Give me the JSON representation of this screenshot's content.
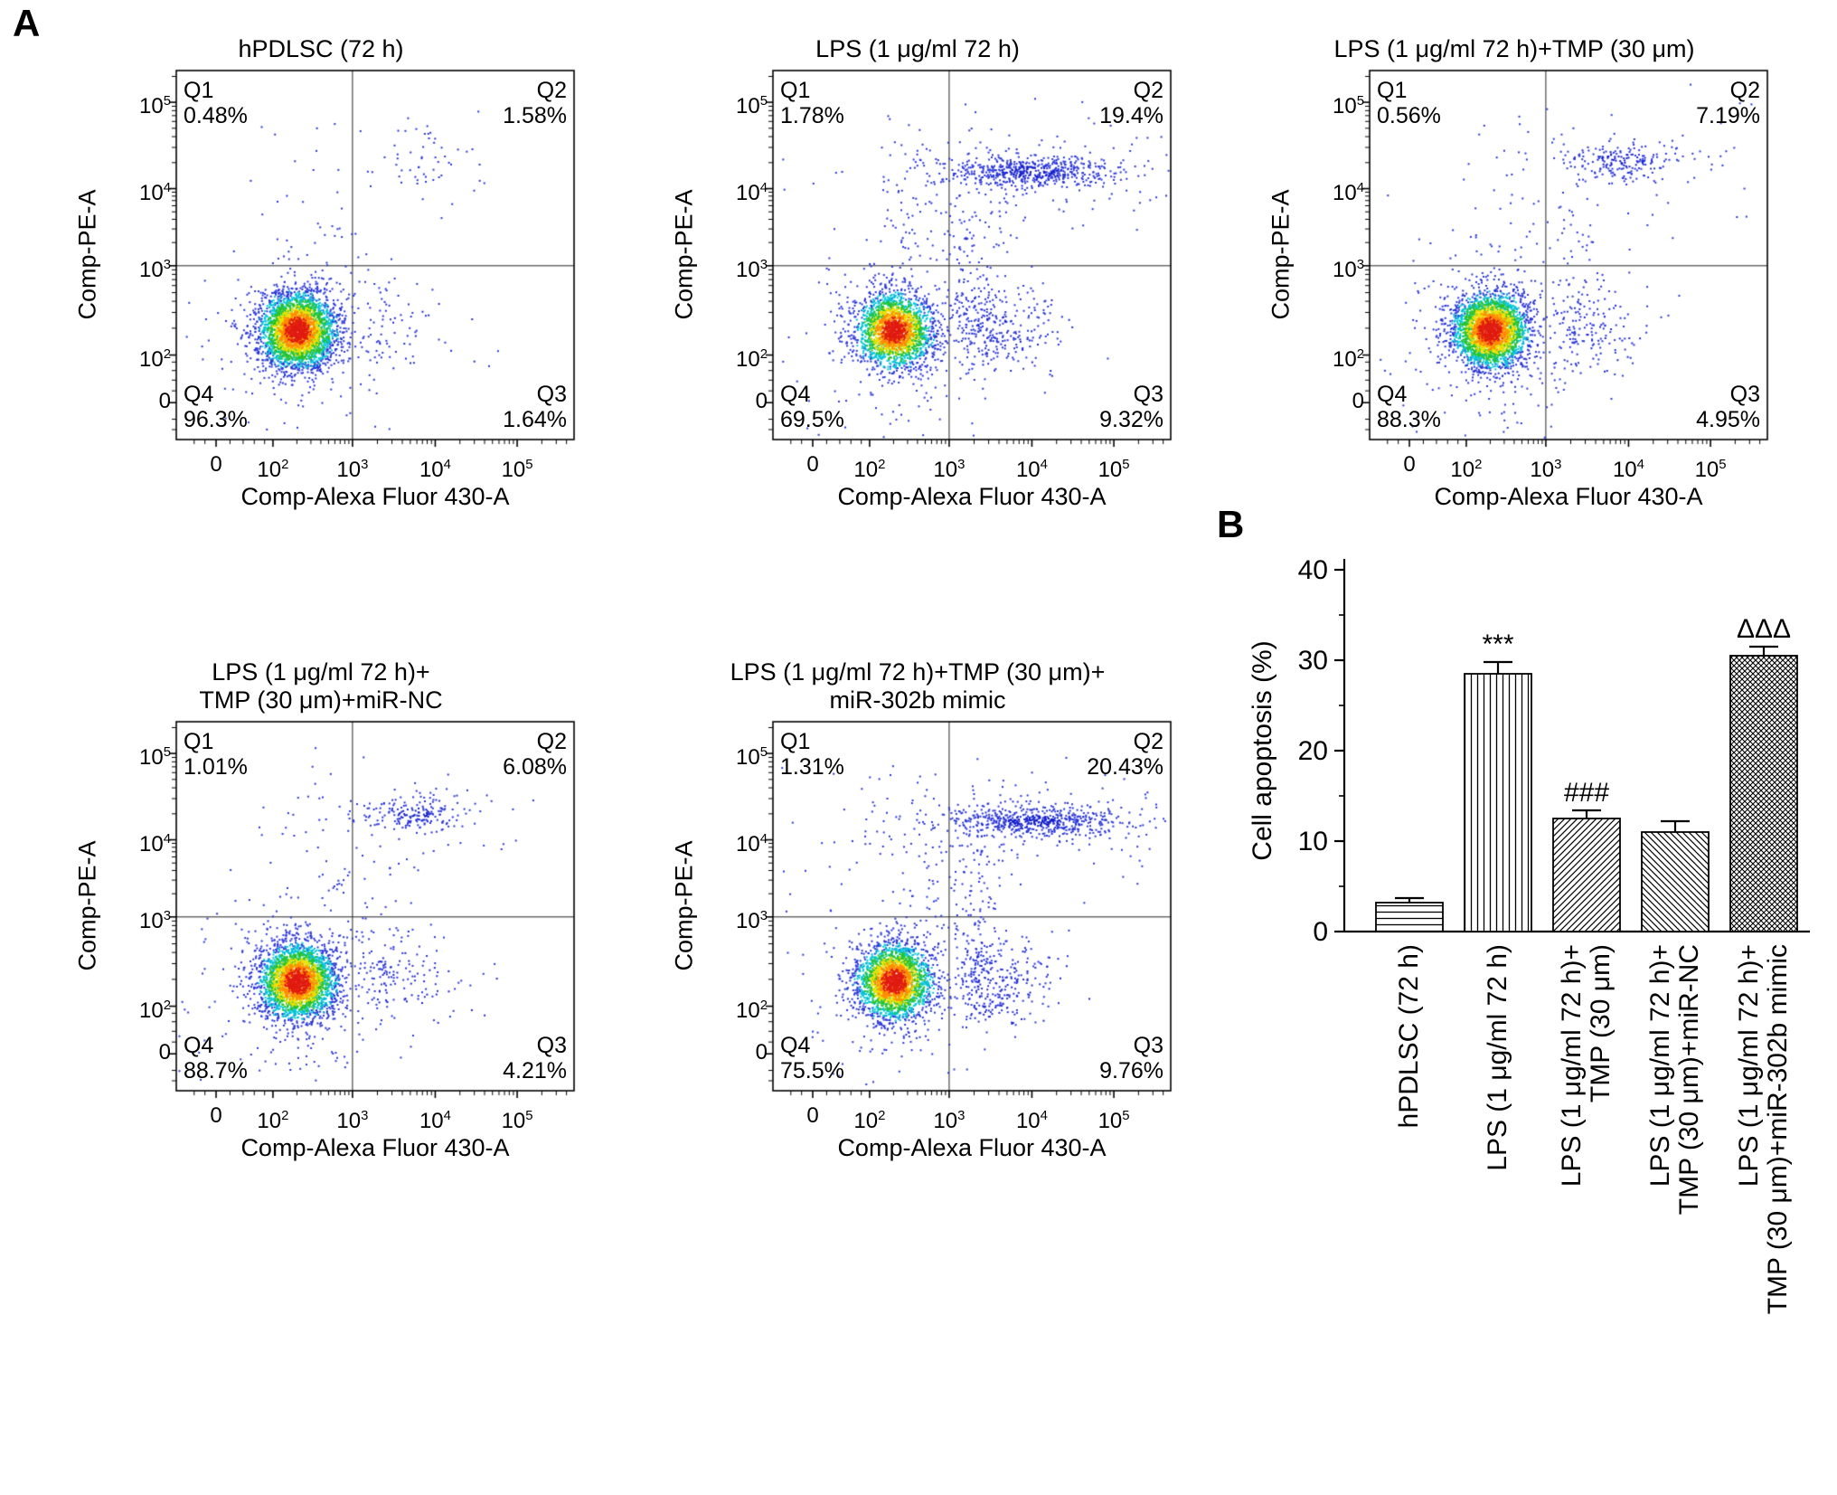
{
  "panel_labels": {
    "a": "A",
    "b": "B"
  },
  "flow_axis": {
    "x_label": "Comp-Alexa Fluor 430-A",
    "y_label": "Comp-PE-A",
    "x_ticks": [
      "0",
      "10^2",
      "10^3",
      "10^4",
      "10^5"
    ],
    "y_ticks": [
      "10^5",
      "10^4",
      "10^3",
      "10^2",
      "0"
    ]
  },
  "chart_data": [
    {
      "type": "scatter",
      "subtype": "flow-cytometry-density",
      "title_lines": [
        "hPDLSC (72 h)"
      ],
      "quadrants": [
        {
          "label": "Q1",
          "text": "0.48%",
          "value_pct": 0.48
        },
        {
          "label": "Q2",
          "text": "1.58%",
          "value_pct": 1.58
        },
        {
          "label": "Q3",
          "text": "1.64%",
          "value_pct": 1.64
        },
        {
          "label": "Q4",
          "text": "96.3%",
          "value_pct": 96.3
        }
      ]
    },
    {
      "type": "scatter",
      "subtype": "flow-cytometry-density",
      "title_lines": [
        "LPS (1 μg/ml 72 h)"
      ],
      "quadrants": [
        {
          "label": "Q1",
          "text": "1.78%",
          "value_pct": 1.78
        },
        {
          "label": "Q2",
          "text": "19.4%",
          "value_pct": 19.4
        },
        {
          "label": "Q3",
          "text": "9.32%",
          "value_pct": 9.32
        },
        {
          "label": "Q4",
          "text": "69.5%",
          "value_pct": 69.5
        }
      ]
    },
    {
      "type": "scatter",
      "subtype": "flow-cytometry-density",
      "title_lines": [
        "LPS (1 μg/ml 72 h)+TMP (30 μm)"
      ],
      "quadrants": [
        {
          "label": "Q1",
          "text": "0.56%",
          "value_pct": 0.56
        },
        {
          "label": "Q2",
          "text": "7.19%",
          "value_pct": 7.19
        },
        {
          "label": "Q3",
          "text": "4.95%",
          "value_pct": 4.95
        },
        {
          "label": "Q4",
          "text": "88.3%",
          "value_pct": 88.3
        }
      ]
    },
    {
      "type": "scatter",
      "subtype": "flow-cytometry-density",
      "title_lines": [
        "LPS (1 μg/ml 72 h)+",
        "TMP (30 μm)+miR-NC"
      ],
      "quadrants": [
        {
          "label": "Q1",
          "text": "1.01%",
          "value_pct": 1.01
        },
        {
          "label": "Q2",
          "text": "6.08%",
          "value_pct": 6.08
        },
        {
          "label": "Q3",
          "text": "4.21%",
          "value_pct": 4.21
        },
        {
          "label": "Q4",
          "text": "88.7%",
          "value_pct": 88.7
        }
      ]
    },
    {
      "type": "scatter",
      "subtype": "flow-cytometry-density",
      "title_lines": [
        "LPS (1 μg/ml 72 h)+TMP (30 μm)+",
        "miR-302b mimic"
      ],
      "quadrants": [
        {
          "label": "Q1",
          "text": "1.31%",
          "value_pct": 1.31
        },
        {
          "label": "Q2",
          "text": "20.43%",
          "value_pct": 20.43
        },
        {
          "label": "Q3",
          "text": "9.76%",
          "value_pct": 9.76
        },
        {
          "label": "Q4",
          "text": "75.5%",
          "value_pct": 75.5
        }
      ]
    },
    {
      "type": "bar",
      "ylabel": "Cell apoptosis (%)",
      "ylim": [
        0,
        40
      ],
      "yticks": [
        0,
        10,
        20,
        30,
        40
      ],
      "grid": false,
      "legend": "none",
      "categories": [
        "hPDLSC (72 h)",
        "LPS (1 μg/ml 72 h)",
        "LPS (1 μg/ml 72 h)+TMP (30 μm)",
        "LPS (1 μg/ml 72 h)+TMP (30 μm)+miR-NC",
        "LPS (1 μg/ml 72 h)+TMP (30 μm)+miR-302b mimic"
      ],
      "category_lines": [
        [
          "hPDLSC (72 h)"
        ],
        [
          "LPS (1 μg/ml 72 h)"
        ],
        [
          "LPS (1 μg/ml 72 h)+",
          "TMP (30 μm)"
        ],
        [
          "LPS (1 μg/ml 72 h)+",
          "TMP (30 μm)+miR-NC"
        ],
        [
          "LPS (1 μg/ml 72 h)+",
          "TMP (30 μm)+miR-302b mimic"
        ]
      ],
      "values": [
        3.2,
        28.5,
        12.5,
        11.0,
        30.5
      ],
      "errors": [
        0.5,
        1.3,
        0.9,
        1.2,
        1.0
      ],
      "annotations": [
        "",
        "***",
        "###",
        "",
        "ΔΔΔ"
      ],
      "bar_patterns": [
        "horizontal",
        "vertical",
        "diag-right",
        "diag-left",
        "crosshatch"
      ],
      "bar_fill": "#ffffff",
      "outline_color": "#000000"
    }
  ]
}
